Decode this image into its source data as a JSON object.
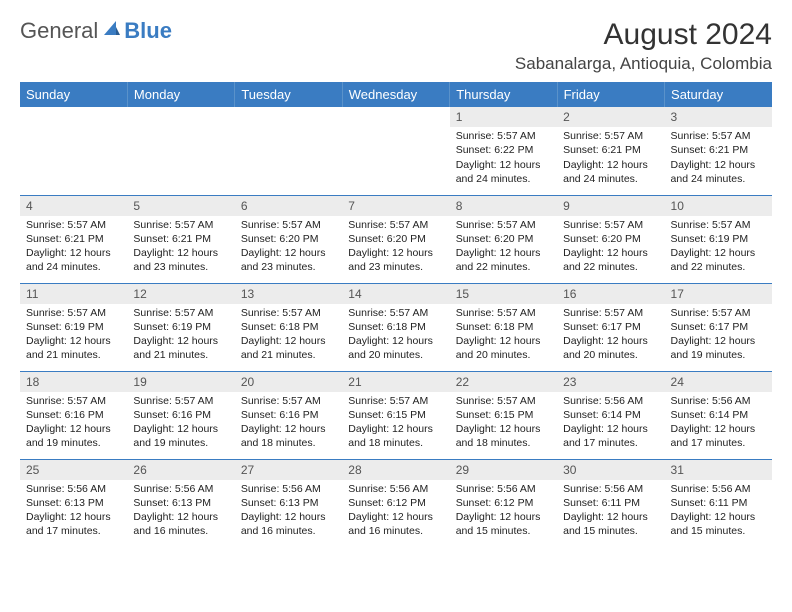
{
  "logo": {
    "text1": "General",
    "text2": "Blue"
  },
  "title": "August 2024",
  "location": "Sabanalarga, Antioquia, Colombia",
  "colors": {
    "header_bg": "#3a7cc2",
    "header_text": "#ffffff",
    "daynum_bg": "#ececec",
    "border": "#3a7cc2",
    "logo_blue": "#3a7cc2",
    "logo_gray": "#555555"
  },
  "day_names": [
    "Sunday",
    "Monday",
    "Tuesday",
    "Wednesday",
    "Thursday",
    "Friday",
    "Saturday"
  ],
  "first_weekday": 4,
  "days_in_month": 31,
  "days": {
    "1": {
      "sunrise": "5:57 AM",
      "sunset": "6:22 PM",
      "daylight": "12 hours and 24 minutes."
    },
    "2": {
      "sunrise": "5:57 AM",
      "sunset": "6:21 PM",
      "daylight": "12 hours and 24 minutes."
    },
    "3": {
      "sunrise": "5:57 AM",
      "sunset": "6:21 PM",
      "daylight": "12 hours and 24 minutes."
    },
    "4": {
      "sunrise": "5:57 AM",
      "sunset": "6:21 PM",
      "daylight": "12 hours and 24 minutes."
    },
    "5": {
      "sunrise": "5:57 AM",
      "sunset": "6:21 PM",
      "daylight": "12 hours and 23 minutes."
    },
    "6": {
      "sunrise": "5:57 AM",
      "sunset": "6:20 PM",
      "daylight": "12 hours and 23 minutes."
    },
    "7": {
      "sunrise": "5:57 AM",
      "sunset": "6:20 PM",
      "daylight": "12 hours and 23 minutes."
    },
    "8": {
      "sunrise": "5:57 AM",
      "sunset": "6:20 PM",
      "daylight": "12 hours and 22 minutes."
    },
    "9": {
      "sunrise": "5:57 AM",
      "sunset": "6:20 PM",
      "daylight": "12 hours and 22 minutes."
    },
    "10": {
      "sunrise": "5:57 AM",
      "sunset": "6:19 PM",
      "daylight": "12 hours and 22 minutes."
    },
    "11": {
      "sunrise": "5:57 AM",
      "sunset": "6:19 PM",
      "daylight": "12 hours and 21 minutes."
    },
    "12": {
      "sunrise": "5:57 AM",
      "sunset": "6:19 PM",
      "daylight": "12 hours and 21 minutes."
    },
    "13": {
      "sunrise": "5:57 AM",
      "sunset": "6:18 PM",
      "daylight": "12 hours and 21 minutes."
    },
    "14": {
      "sunrise": "5:57 AM",
      "sunset": "6:18 PM",
      "daylight": "12 hours and 20 minutes."
    },
    "15": {
      "sunrise": "5:57 AM",
      "sunset": "6:18 PM",
      "daylight": "12 hours and 20 minutes."
    },
    "16": {
      "sunrise": "5:57 AM",
      "sunset": "6:17 PM",
      "daylight": "12 hours and 20 minutes."
    },
    "17": {
      "sunrise": "5:57 AM",
      "sunset": "6:17 PM",
      "daylight": "12 hours and 19 minutes."
    },
    "18": {
      "sunrise": "5:57 AM",
      "sunset": "6:16 PM",
      "daylight": "12 hours and 19 minutes."
    },
    "19": {
      "sunrise": "5:57 AM",
      "sunset": "6:16 PM",
      "daylight": "12 hours and 19 minutes."
    },
    "20": {
      "sunrise": "5:57 AM",
      "sunset": "6:16 PM",
      "daylight": "12 hours and 18 minutes."
    },
    "21": {
      "sunrise": "5:57 AM",
      "sunset": "6:15 PM",
      "daylight": "12 hours and 18 minutes."
    },
    "22": {
      "sunrise": "5:57 AM",
      "sunset": "6:15 PM",
      "daylight": "12 hours and 18 minutes."
    },
    "23": {
      "sunrise": "5:56 AM",
      "sunset": "6:14 PM",
      "daylight": "12 hours and 17 minutes."
    },
    "24": {
      "sunrise": "5:56 AM",
      "sunset": "6:14 PM",
      "daylight": "12 hours and 17 minutes."
    },
    "25": {
      "sunrise": "5:56 AM",
      "sunset": "6:13 PM",
      "daylight": "12 hours and 17 minutes."
    },
    "26": {
      "sunrise": "5:56 AM",
      "sunset": "6:13 PM",
      "daylight": "12 hours and 16 minutes."
    },
    "27": {
      "sunrise": "5:56 AM",
      "sunset": "6:13 PM",
      "daylight": "12 hours and 16 minutes."
    },
    "28": {
      "sunrise": "5:56 AM",
      "sunset": "6:12 PM",
      "daylight": "12 hours and 16 minutes."
    },
    "29": {
      "sunrise": "5:56 AM",
      "sunset": "6:12 PM",
      "daylight": "12 hours and 15 minutes."
    },
    "30": {
      "sunrise": "5:56 AM",
      "sunset": "6:11 PM",
      "daylight": "12 hours and 15 minutes."
    },
    "31": {
      "sunrise": "5:56 AM",
      "sunset": "6:11 PM",
      "daylight": "12 hours and 15 minutes."
    }
  },
  "labels": {
    "sunrise": "Sunrise:",
    "sunset": "Sunset:",
    "daylight": "Daylight:"
  }
}
